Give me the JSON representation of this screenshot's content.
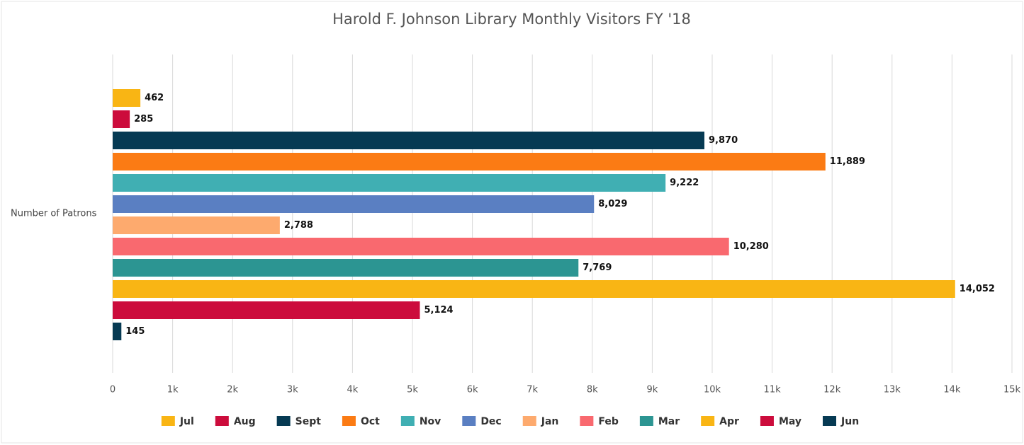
{
  "chart_data": {
    "type": "bar",
    "orientation": "horizontal",
    "title": "Harold F. Johnson Library Monthly Visitors FY '18",
    "categories": [
      "Number of Patrons"
    ],
    "series": [
      {
        "name": "Jul",
        "color": "#f9b514",
        "values": [
          462
        ]
      },
      {
        "name": "Aug",
        "color": "#cc0c3c",
        "values": [
          285
        ]
      },
      {
        "name": "Sept",
        "color": "#063a53",
        "values": [
          9870
        ],
        "value_labels": [
          "9,870"
        ]
      },
      {
        "name": "Oct",
        "color": "#fb7b14",
        "values": [
          11889
        ],
        "value_labels": [
          "11,889"
        ]
      },
      {
        "name": "Nov",
        "color": "#40afb3",
        "values": [
          9222
        ],
        "value_labels": [
          "9,222"
        ]
      },
      {
        "name": "Dec",
        "color": "#5a7fc2",
        "values": [
          8029
        ],
        "value_labels": [
          "8,029"
        ]
      },
      {
        "name": "Jan",
        "color": "#fdaa6e",
        "values": [
          2788
        ],
        "value_labels": [
          "2,788"
        ]
      },
      {
        "name": "Feb",
        "color": "#f9696f",
        "values": [
          10280
        ],
        "value_labels": [
          "10,280"
        ]
      },
      {
        "name": "Mar",
        "color": "#2c9592",
        "values": [
          7769
        ],
        "value_labels": [
          "7,769"
        ]
      },
      {
        "name": "Apr",
        "color": "#f9b514",
        "values": [
          14052
        ],
        "value_labels": [
          "14,052"
        ]
      },
      {
        "name": "May",
        "color": "#cc0c3c",
        "values": [
          5124
        ],
        "value_labels": [
          "5,124"
        ]
      },
      {
        "name": "Jun",
        "color": "#063a53",
        "values": [
          145
        ]
      }
    ],
    "xlim": [
      0,
      15000
    ],
    "xticks": [
      0,
      {
        "value": 1000,
        "label": "1k"
      },
      {
        "value": 2000,
        "label": "2k"
      },
      {
        "value": 3000,
        "label": "3k"
      },
      {
        "value": 4000,
        "label": "4k"
      },
      {
        "value": 5000,
        "label": "5k"
      },
      {
        "value": 6000,
        "label": "6k"
      },
      {
        "value": 7000,
        "label": "7k"
      },
      {
        "value": 8000,
        "label": "8k"
      },
      {
        "value": 9000,
        "label": "9k"
      },
      {
        "value": 10000,
        "label": "10k"
      },
      {
        "value": 11000,
        "label": "11k"
      },
      {
        "value": 12000,
        "label": "12k"
      },
      {
        "value": 13000,
        "label": "13k"
      },
      {
        "value": 14000,
        "label": "14k"
      },
      {
        "value": 15000,
        "label": "15k"
      }
    ],
    "grid": true,
    "legend": "bottom"
  }
}
